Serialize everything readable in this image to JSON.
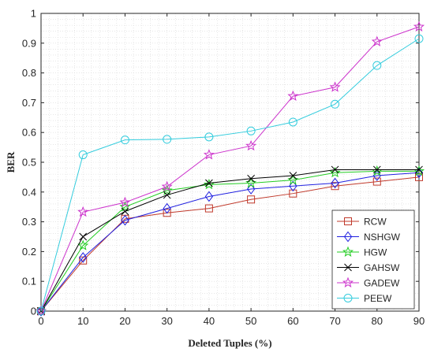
{
  "chart_data": {
    "type": "line",
    "xlabel": "Deleted Tuples (%)",
    "ylabel": "BER",
    "x": [
      0,
      10,
      20,
      30,
      40,
      50,
      60,
      70,
      80,
      90
    ],
    "xlim": [
      0,
      90
    ],
    "ylim": [
      0,
      1
    ],
    "xticks": [
      "0",
      "10",
      "20",
      "30",
      "40",
      "50",
      "60",
      "70",
      "80",
      "90"
    ],
    "yticks": [
      "0",
      "0.1",
      "0.2",
      "0.3",
      "0.4",
      "0.5",
      "0.6",
      "0.7",
      "0.8",
      "0.9",
      "1"
    ],
    "grid": "dotted",
    "legend_position": "bottom-right",
    "series": [
      {
        "name": "RCW",
        "color": "#c0392b",
        "marker": "square",
        "values": [
          0,
          0.17,
          0.31,
          0.33,
          0.345,
          0.375,
          0.395,
          0.42,
          0.435,
          0.45
        ]
      },
      {
        "name": "NSHGW",
        "color": "#2020e0",
        "marker": "diamond",
        "values": [
          0,
          0.18,
          0.305,
          0.345,
          0.385,
          0.41,
          0.42,
          0.43,
          0.455,
          0.465
        ]
      },
      {
        "name": "HGW",
        "color": "#22cc22",
        "marker": "star",
        "values": [
          0,
          0.22,
          0.35,
          0.405,
          0.425,
          0.43,
          0.44,
          0.465,
          0.47,
          0.47
        ]
      },
      {
        "name": "GAHSW",
        "color": "#000000",
        "marker": "x",
        "values": [
          0,
          0.25,
          0.335,
          0.39,
          0.43,
          0.445,
          0.455,
          0.475,
          0.475,
          0.475
        ]
      },
      {
        "name": "GADEW",
        "color": "#cc33cc",
        "marker": "star",
        "values": [
          0,
          0.333,
          0.365,
          0.418,
          0.525,
          0.555,
          0.722,
          0.752,
          0.905,
          0.955
        ]
      },
      {
        "name": "PEEW",
        "color": "#33ccdd",
        "marker": "circle",
        "values": [
          0,
          0.525,
          0.575,
          0.577,
          0.585,
          0.605,
          0.635,
          0.695,
          0.825,
          0.915
        ]
      }
    ]
  }
}
